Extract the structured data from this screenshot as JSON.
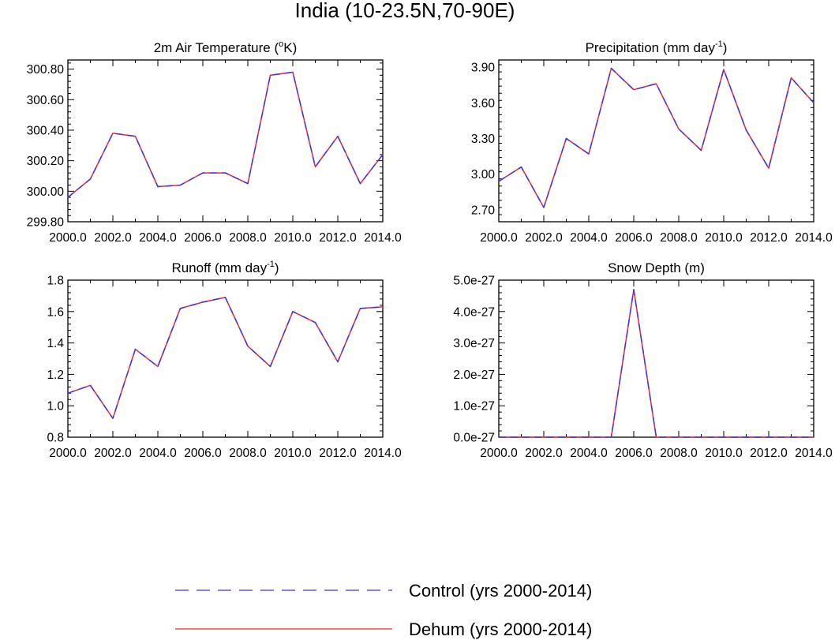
{
  "figure": {
    "title": "India (10-23.5N,70-90E)"
  },
  "legend": {
    "entries": [
      {
        "label": "Control (yrs 2000-2014)",
        "color": "#3333ff",
        "style": "dashed"
      },
      {
        "label": "Dehum (yrs 2000-2014)",
        "color": "#ff2020",
        "style": "solid"
      }
    ]
  },
  "chart_data": [
    {
      "type": "line",
      "title": "2m Air Temperature (oK)",
      "title_parts": {
        "pre": "2m Air Temperature (",
        "sup": "o",
        "post": "K)"
      },
      "x": [
        2000,
        2001,
        2002,
        2003,
        2004,
        2005,
        2006,
        2007,
        2008,
        2009,
        2010,
        2011,
        2012,
        2013,
        2014
      ],
      "xlim": [
        2000,
        2014
      ],
      "xticks": [
        2000,
        2002,
        2004,
        2006,
        2008,
        2010,
        2012,
        2014
      ],
      "xtick_labels": [
        "2000.0",
        "2002.0",
        "2004.0",
        "2006.0",
        "2008.0",
        "2010.0",
        "2012.0",
        "2014.0"
      ],
      "ylim": [
        299.8,
        300.86
      ],
      "yticks": [
        299.8,
        300.0,
        300.2,
        300.4,
        300.6,
        300.8
      ],
      "ytick_labels": [
        "299.80",
        "300.00",
        "300.20",
        "300.40",
        "300.60",
        "300.80"
      ],
      "series": [
        {
          "name": "Control (yrs 2000-2014)",
          "values": [
            299.96,
            300.08,
            300.38,
            300.36,
            300.03,
            300.04,
            300.12,
            300.12,
            300.05,
            300.76,
            300.78,
            300.16,
            300.36,
            300.05,
            300.24
          ]
        },
        {
          "name": "Dehum (yrs 2000-2014)",
          "values": [
            299.96,
            300.08,
            300.38,
            300.36,
            300.03,
            300.04,
            300.12,
            300.12,
            300.05,
            300.76,
            300.78,
            300.16,
            300.36,
            300.05,
            300.24
          ]
        }
      ]
    },
    {
      "type": "line",
      "title": "Precipitation (mm day-1)",
      "title_parts": {
        "pre": "Precipitation (mm day",
        "sup": "-1",
        "post": ")"
      },
      "x": [
        2000,
        2001,
        2002,
        2003,
        2004,
        2005,
        2006,
        2007,
        2008,
        2009,
        2010,
        2011,
        2012,
        2013,
        2014
      ],
      "xlim": [
        2000,
        2014
      ],
      "xticks": [
        2000,
        2002,
        2004,
        2006,
        2008,
        2010,
        2012,
        2014
      ],
      "xtick_labels": [
        "2000.0",
        "2002.0",
        "2004.0",
        "2006.0",
        "2008.0",
        "2010.0",
        "2012.0",
        "2014.0"
      ],
      "ylim": [
        2.6,
        3.96
      ],
      "yticks": [
        2.7,
        3.0,
        3.3,
        3.6,
        3.9
      ],
      "ytick_labels": [
        "2.70",
        "3.00",
        "3.30",
        "3.60",
        "3.90"
      ],
      "series": [
        {
          "name": "Control (yrs 2000-2014)",
          "values": [
            2.94,
            3.06,
            2.72,
            3.3,
            3.17,
            3.89,
            3.71,
            3.76,
            3.38,
            3.2,
            3.88,
            3.37,
            3.05,
            3.81,
            3.6
          ]
        },
        {
          "name": "Dehum (yrs 2000-2014)",
          "values": [
            2.94,
            3.06,
            2.72,
            3.3,
            3.17,
            3.89,
            3.71,
            3.76,
            3.38,
            3.2,
            3.88,
            3.37,
            3.05,
            3.81,
            3.6
          ]
        }
      ]
    },
    {
      "type": "line",
      "title": "Runoff (mm day-1)",
      "title_parts": {
        "pre": "Runoff (mm day",
        "sup": "-1",
        "post": ")"
      },
      "x": [
        2000,
        2001,
        2002,
        2003,
        2004,
        2005,
        2006,
        2007,
        2008,
        2009,
        2010,
        2011,
        2012,
        2013,
        2014
      ],
      "xlim": [
        2000,
        2014
      ],
      "xticks": [
        2000,
        2002,
        2004,
        2006,
        2008,
        2010,
        2012,
        2014
      ],
      "xtick_labels": [
        "2000.0",
        "2002.0",
        "2004.0",
        "2006.0",
        "2008.0",
        "2010.0",
        "2012.0",
        "2014.0"
      ],
      "ylim": [
        0.8,
        1.8
      ],
      "yticks": [
        0.8,
        1.0,
        1.2,
        1.4,
        1.6,
        1.8
      ],
      "ytick_labels": [
        "0.8",
        "1.0",
        "1.2",
        "1.4",
        "1.6",
        "1.8"
      ],
      "series": [
        {
          "name": "Control (yrs 2000-2014)",
          "values": [
            1.08,
            1.13,
            0.92,
            1.36,
            1.25,
            1.62,
            1.66,
            1.69,
            1.38,
            1.25,
            1.6,
            1.53,
            1.28,
            1.62,
            1.63
          ]
        },
        {
          "name": "Dehum (yrs 2000-2014)",
          "values": [
            1.08,
            1.13,
            0.92,
            1.36,
            1.25,
            1.62,
            1.66,
            1.69,
            1.38,
            1.25,
            1.6,
            1.53,
            1.28,
            1.62,
            1.63
          ]
        }
      ]
    },
    {
      "type": "line",
      "title": "Snow Depth (m)",
      "title_parts": {
        "pre": "Snow Depth (m)",
        "sup": "",
        "post": ""
      },
      "x": [
        2000,
        2001,
        2002,
        2003,
        2004,
        2005,
        2006,
        2007,
        2008,
        2009,
        2010,
        2011,
        2012,
        2013,
        2014
      ],
      "xlim": [
        2000,
        2014
      ],
      "xticks": [
        2000,
        2002,
        2004,
        2006,
        2008,
        2010,
        2012,
        2014
      ],
      "xtick_labels": [
        "2000.0",
        "2002.0",
        "2004.0",
        "2006.0",
        "2008.0",
        "2010.0",
        "2012.0",
        "2014.0"
      ],
      "ylim": [
        0,
        5e-27
      ],
      "yticks": [
        0,
        1e-27,
        2e-27,
        3e-27,
        4e-27,
        5e-27
      ],
      "ytick_labels": [
        "0.0e-27",
        "1.0e-27",
        "2.0e-27",
        "3.0e-27",
        "4.0e-27",
        "5.0e-27"
      ],
      "series": [
        {
          "name": "Control (yrs 2000-2014)",
          "values": [
            0,
            0,
            0,
            0,
            0,
            0,
            4.7e-27,
            0,
            0,
            0,
            0,
            0,
            0,
            0,
            0
          ]
        },
        {
          "name": "Dehum (yrs 2000-2014)",
          "values": [
            0,
            0,
            0,
            0,
            0,
            0,
            4.7e-27,
            0,
            0,
            0,
            0,
            0,
            0,
            0,
            0
          ]
        }
      ]
    }
  ]
}
